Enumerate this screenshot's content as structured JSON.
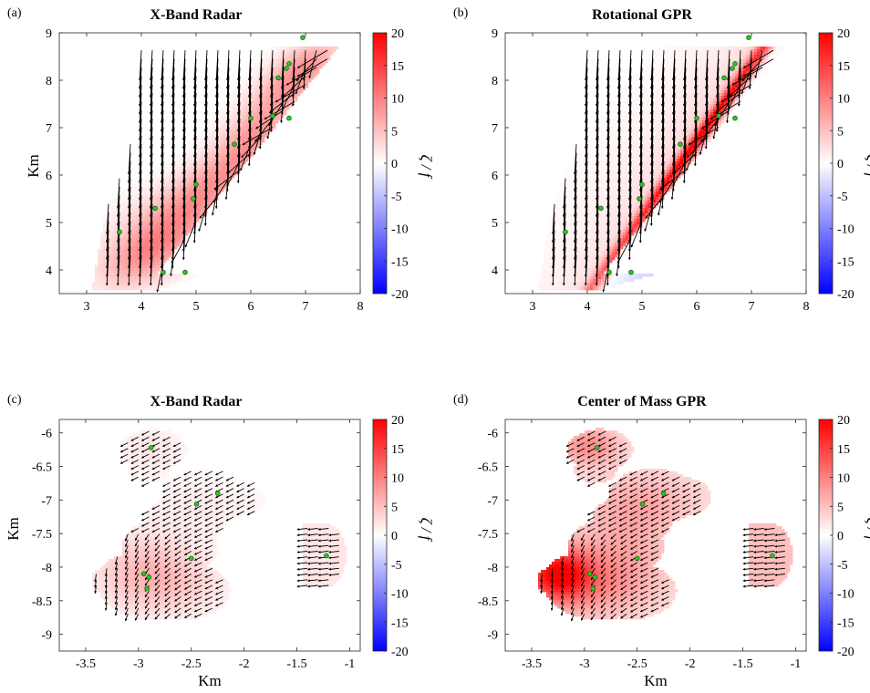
{
  "figure": {
    "colorbar_label": "ζ / f"
  },
  "panels": [
    {
      "panel_label": "(a)",
      "title": "X-Band Radar",
      "xlabel": "",
      "ylabel": "Km"
    },
    {
      "panel_label": "(b)",
      "title": "Rotational GPR",
      "xlabel": "",
      "ylabel": ""
    },
    {
      "panel_label": "(c)",
      "title": "X-Band Radar",
      "xlabel": "Km",
      "ylabel": "Km"
    },
    {
      "panel_label": "(d)",
      "title": "Center of Mass GPR",
      "xlabel": "Km",
      "ylabel": ""
    }
  ],
  "colors": {
    "positive": "#ff0000",
    "negative": "#0000ff",
    "zero": "#ffffff",
    "arrow": "#000000",
    "marker": "#22cc22"
  },
  "chart_data": [
    {
      "type": "heatmap",
      "title": "X-Band Radar",
      "ylabel": "Km",
      "xlim": [
        2.5,
        8
      ],
      "ylim": [
        3.5,
        9
      ],
      "xticks": [
        3,
        4,
        5,
        6,
        7,
        8
      ],
      "yticks": [
        4,
        5,
        6,
        7,
        8,
        9
      ],
      "colorbar": {
        "label": "ζ / f",
        "range": [
          -20,
          20
        ],
        "ticks": [
          20,
          15,
          10,
          5,
          0,
          -5,
          -10,
          -15,
          -20
        ]
      },
      "region": "parallelogram",
      "region_corners": [
        [
          3.1,
          3.6
        ],
        [
          4.3,
          3.95
        ],
        [
          7.6,
          8.7
        ],
        [
          4.0,
          8.7
        ]
      ],
      "vorticity_peak": 8,
      "stations": [
        [
          6.95,
          8.9
        ],
        [
          6.7,
          8.35
        ],
        [
          6.65,
          8.25
        ],
        [
          6.5,
          8.05
        ],
        [
          6.0,
          7.2
        ],
        [
          6.4,
          7.25
        ],
        [
          6.7,
          7.2
        ],
        [
          5.7,
          6.65
        ],
        [
          5.0,
          5.8
        ],
        [
          4.95,
          5.5
        ],
        [
          4.25,
          5.3
        ],
        [
          3.6,
          4.8
        ],
        [
          4.4,
          3.95
        ],
        [
          4.8,
          3.95
        ]
      ]
    },
    {
      "type": "heatmap",
      "title": "Rotational GPR",
      "xlim": [
        2.5,
        8
      ],
      "ylim": [
        3.5,
        9
      ],
      "xticks": [
        3,
        4,
        5,
        6,
        7,
        8
      ],
      "yticks": [
        4,
        5,
        6,
        7,
        8,
        9
      ],
      "colorbar": {
        "label": "ζ / f",
        "range": [
          -20,
          20
        ],
        "ticks": [
          20,
          15,
          10,
          5,
          0,
          -5,
          -10,
          -15,
          -20
        ]
      },
      "region": "parallelogram",
      "region_corners": [
        [
          3.1,
          3.6
        ],
        [
          4.3,
          3.95
        ],
        [
          7.6,
          8.7
        ],
        [
          4.0,
          8.7
        ]
      ],
      "vorticity_peak": 18,
      "vorticity_min": -5,
      "stations": [
        [
          6.95,
          8.9
        ],
        [
          6.7,
          8.35
        ],
        [
          6.65,
          8.25
        ],
        [
          6.5,
          8.05
        ],
        [
          6.0,
          7.2
        ],
        [
          6.4,
          7.25
        ],
        [
          6.7,
          7.2
        ],
        [
          5.7,
          6.65
        ],
        [
          5.0,
          5.8
        ],
        [
          4.95,
          5.5
        ],
        [
          4.25,
          5.3
        ],
        [
          3.6,
          4.8
        ],
        [
          4.4,
          3.95
        ],
        [
          4.8,
          3.95
        ]
      ]
    },
    {
      "type": "heatmap",
      "title": "X-Band Radar",
      "xlabel": "Km",
      "ylabel": "Km",
      "xlim": [
        -3.75,
        -0.9
      ],
      "ylim": [
        -9.25,
        -5.8
      ],
      "xticks": [
        -3.5,
        -3,
        -2.5,
        -2,
        -1.5,
        -1
      ],
      "yticks": [
        -6,
        -6.5,
        -7,
        -7.5,
        -8,
        -8.5,
        -9
      ],
      "colorbar": {
        "label": "ζ / f",
        "range": [
          -20,
          20
        ],
        "ticks": [
          20,
          15,
          10,
          5,
          0,
          -5,
          -10,
          -15,
          -20
        ]
      },
      "vorticity_peak": 5,
      "stations": [
        [
          -2.88,
          -6.22
        ],
        [
          -2.25,
          -6.9
        ],
        [
          -2.45,
          -7.06
        ],
        [
          -2.5,
          -7.87
        ],
        [
          -2.95,
          -8.1
        ],
        [
          -2.9,
          -8.15
        ],
        [
          -2.92,
          -8.32
        ],
        [
          -1.22,
          -7.83
        ]
      ]
    },
    {
      "type": "heatmap",
      "title": "Center of Mass GPR",
      "xlabel": "Km",
      "xlim": [
        -3.75,
        -0.9
      ],
      "ylim": [
        -9.25,
        -5.8
      ],
      "xticks": [
        -3.5,
        -3,
        -2.5,
        -2,
        -1.5,
        -1
      ],
      "yticks": [
        -6,
        -6.5,
        -7,
        -7.5,
        -8,
        -8.5,
        -9
      ],
      "colorbar": {
        "label": "ζ / f",
        "range": [
          -20,
          20
        ],
        "ticks": [
          20,
          15,
          10,
          5,
          0,
          -5,
          -10,
          -15,
          -20
        ]
      },
      "vorticity_peak": 16,
      "stations": [
        [
          -2.88,
          -6.22
        ],
        [
          -2.25,
          -6.9
        ],
        [
          -2.45,
          -7.06
        ],
        [
          -2.5,
          -7.87
        ],
        [
          -2.95,
          -8.1
        ],
        [
          -2.9,
          -8.15
        ],
        [
          -2.92,
          -8.32
        ],
        [
          -1.22,
          -7.83
        ]
      ]
    }
  ]
}
